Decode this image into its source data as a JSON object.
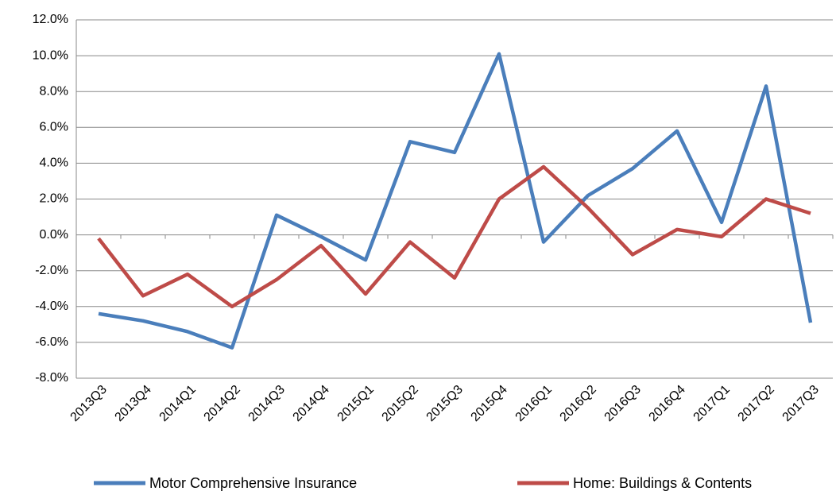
{
  "chart_data": {
    "type": "line",
    "categories": [
      "2013Q3",
      "2013Q4",
      "2014Q1",
      "2014Q2",
      "2014Q3",
      "2014Q4",
      "2015Q1",
      "2015Q2",
      "2015Q3",
      "2015Q4",
      "2016Q1",
      "2016Q2",
      "2016Q3",
      "2016Q4",
      "2017Q1",
      "2017Q2",
      "2017Q3"
    ],
    "series": [
      {
        "name": "Motor Comprehensive Insurance",
        "color": "#4a7ebb",
        "values": [
          -4.4,
          -4.8,
          -5.4,
          -6.3,
          1.1,
          -0.1,
          -1.4,
          5.2,
          4.6,
          10.1,
          -0.4,
          2.2,
          3.7,
          5.8,
          0.7,
          8.3,
          -4.9
        ]
      },
      {
        "name": "Home: Buildings & Contents",
        "color": "#be4b48",
        "values": [
          -0.2,
          -3.4,
          -2.2,
          -4.0,
          -2.5,
          -0.6,
          -3.3,
          -0.4,
          -2.4,
          2.0,
          3.8,
          1.5,
          -1.1,
          0.3,
          -0.1,
          2.0,
          1.2
        ]
      }
    ],
    "ylim": [
      -8,
      12
    ],
    "yticks": [
      {
        "value": -8,
        "label": "-8.0%"
      },
      {
        "value": -6,
        "label": "-6.0%"
      },
      {
        "value": -4,
        "label": "-4.0%"
      },
      {
        "value": -2,
        "label": "-2.0%"
      },
      {
        "value": 0,
        "label": "0.0%"
      },
      {
        "value": 2,
        "label": "2.0%"
      },
      {
        "value": 4,
        "label": "4.0%"
      },
      {
        "value": 6,
        "label": "6.0%"
      },
      {
        "value": 8,
        "label": "8.0%"
      },
      {
        "value": 10,
        "label": "10.0%"
      },
      {
        "value": 12,
        "label": "12.0%"
      }
    ],
    "grid": true,
    "legend": "bottom"
  }
}
